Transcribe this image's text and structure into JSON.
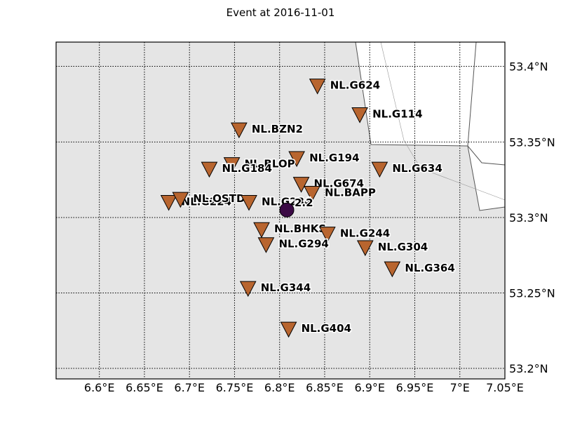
{
  "title": "Event at 2016-11-01",
  "colors": {
    "land": "#e5e5e5",
    "water": "#ffffff",
    "station": "#b8652f",
    "event": "#3b0a45",
    "grid": "#000000"
  },
  "map": {
    "lon_range": [
      6.552,
      7.05
    ],
    "lat_range": [
      53.193,
      53.416
    ],
    "projection": "Mercator",
    "grid": "dotted"
  },
  "axes": {
    "x_ticks": [
      {
        "value": 6.6,
        "label": "6.6°E"
      },
      {
        "value": 6.65,
        "label": "6.65°E"
      },
      {
        "value": 6.7,
        "label": "6.7°E"
      },
      {
        "value": 6.75,
        "label": "6.75°E"
      },
      {
        "value": 6.8,
        "label": "6.8°E"
      },
      {
        "value": 6.85,
        "label": "6.85°E"
      },
      {
        "value": 6.9,
        "label": "6.9°E"
      },
      {
        "value": 6.95,
        "label": "6.95°E"
      },
      {
        "value": 7.0,
        "label": "7°E"
      },
      {
        "value": 7.05,
        "label": "7.05°E"
      }
    ],
    "y_ticks": [
      {
        "value": 53.2,
        "label": "53.2°N"
      },
      {
        "value": 53.25,
        "label": "53.25°N"
      },
      {
        "value": 53.3,
        "label": "53.3°N"
      },
      {
        "value": 53.35,
        "label": "53.35°N"
      },
      {
        "value": 53.4,
        "label": "53.4°N"
      }
    ]
  },
  "chart_data": {
    "type": "scatter",
    "title": "Event at 2016-11-01",
    "xlim": [
      6.552,
      7.05
    ],
    "ylim": [
      53.193,
      53.416
    ],
    "grid": true,
    "stations": [
      {
        "name": "NL.G624",
        "lon": 6.842,
        "lat": 53.387
      },
      {
        "name": "NL.G114",
        "lon": 6.889,
        "lat": 53.368
      },
      {
        "name": "NL.BZN2",
        "lon": 6.755,
        "lat": 53.358
      },
      {
        "name": "NL.G194",
        "lon": 6.819,
        "lat": 53.339
      },
      {
        "name": "NL.BLOP",
        "lon": 6.747,
        "lat": 53.335
      },
      {
        "name": "NL.G184",
        "lon": 6.722,
        "lat": 53.332
      },
      {
        "name": "NL.G634",
        "lon": 6.911,
        "lat": 53.332
      },
      {
        "name": "NL.G674",
        "lon": 6.824,
        "lat": 53.322
      },
      {
        "name": "NL.BAPP",
        "lon": 6.836,
        "lat": 53.316
      },
      {
        "name": "NL.G224",
        "lon": 6.677,
        "lat": 53.31
      },
      {
        "name": "NL.OSTD",
        "lon": 6.69,
        "lat": 53.312
      },
      {
        "name": "NL.G234",
        "lon": 6.766,
        "lat": 53.31
      },
      {
        "name": "NL.BHKS",
        "lon": 6.78,
        "lat": 53.292
      },
      {
        "name": "NL.G244",
        "lon": 6.853,
        "lat": 53.289
      },
      {
        "name": "NL.G294",
        "lon": 6.785,
        "lat": 53.282
      },
      {
        "name": "NL.G304",
        "lon": 6.895,
        "lat": 53.28
      },
      {
        "name": "NL.G364",
        "lon": 6.925,
        "lat": 53.266
      },
      {
        "name": "NL.G344",
        "lon": 6.765,
        "lat": 53.253
      },
      {
        "name": "NL.G404",
        "lon": 6.81,
        "lat": 53.226
      }
    ],
    "event": {
      "label": "2.2",
      "lon": 6.808,
      "lat": 53.305
    }
  }
}
